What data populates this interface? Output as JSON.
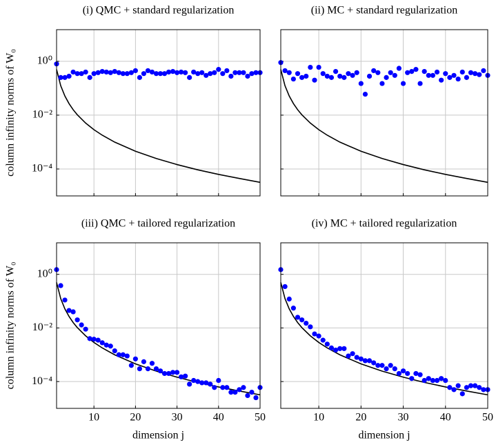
{
  "chart_data": [
    {
      "type": "scatter",
      "title": "(i) QMC + standard regularization",
      "ylabel": "column infinity norms of W₀",
      "log_y": true,
      "grid": true,
      "color": "#0000ff",
      "x": [
        1,
        2,
        3,
        4,
        5,
        6,
        7,
        8,
        9,
        10,
        11,
        12,
        13,
        14,
        15,
        16,
        17,
        18,
        19,
        20,
        21,
        22,
        23,
        24,
        25,
        26,
        27,
        28,
        29,
        30,
        31,
        32,
        33,
        34,
        35,
        36,
        37,
        38,
        39,
        40,
        41,
        42,
        43,
        44,
        45,
        46,
        47,
        48,
        49,
        50
      ],
      "values": [
        0.8,
        0.25,
        0.25,
        0.28,
        0.4,
        0.35,
        0.35,
        0.4,
        0.25,
        0.35,
        0.38,
        0.42,
        0.4,
        0.38,
        0.42,
        0.38,
        0.35,
        0.35,
        0.38,
        0.45,
        0.25,
        0.35,
        0.45,
        0.4,
        0.35,
        0.35,
        0.35,
        0.4,
        0.42,
        0.38,
        0.4,
        0.38,
        0.25,
        0.4,
        0.35,
        0.38,
        0.3,
        0.35,
        0.38,
        0.5,
        0.35,
        0.45,
        0.28,
        0.38,
        0.38,
        0.38,
        0.28,
        0.35,
        0.38,
        0.38
      ],
      "curve": {
        "color": "#000000",
        "x": [
          1,
          2,
          3,
          4,
          5,
          6,
          8,
          10,
          12,
          15,
          20,
          25,
          30,
          35,
          40,
          45,
          50
        ],
        "values": [
          0.5,
          0.124,
          0.0515,
          0.0269,
          0.0159,
          0.0103,
          0.00508,
          0.00288,
          0.0018,
          0.000995,
          0.000456,
          0.000245,
          0.000146,
          9.3e-05,
          6.3e-05,
          4.45e-05,
          3.2e-05
        ]
      },
      "xlim": [
        1,
        50
      ],
      "xticks": [
        10,
        20,
        30,
        40,
        50
      ],
      "ylim": [
        1e-05,
        15
      ],
      "yticks": [
        {
          "value": 1,
          "label": "10⁰"
        },
        {
          "value": 0.01,
          "label": "10⁻²"
        },
        {
          "value": 0.0001,
          "label": "10⁻⁴"
        }
      ]
    },
    {
      "type": "scatter",
      "title": "(ii) MC + standard regularization",
      "log_y": true,
      "grid": true,
      "color": "#0000ff",
      "x": [
        1,
        2,
        3,
        4,
        5,
        6,
        7,
        8,
        9,
        10,
        11,
        12,
        13,
        14,
        15,
        16,
        17,
        18,
        19,
        20,
        21,
        22,
        23,
        24,
        25,
        26,
        27,
        28,
        29,
        30,
        31,
        32,
        33,
        34,
        35,
        36,
        37,
        38,
        39,
        40,
        41,
        42,
        43,
        44,
        45,
        46,
        47,
        48,
        49,
        50
      ],
      "values": [
        0.9,
        0.45,
        0.38,
        0.22,
        0.35,
        0.25,
        0.28,
        0.6,
        0.2,
        0.6,
        0.35,
        0.28,
        0.25,
        0.42,
        0.28,
        0.25,
        0.35,
        0.3,
        0.38,
        0.15,
        0.06,
        0.28,
        0.45,
        0.38,
        0.15,
        0.25,
        0.38,
        0.3,
        0.55,
        0.15,
        0.38,
        0.42,
        0.5,
        0.15,
        0.42,
        0.3,
        0.3,
        0.4,
        0.2,
        0.35,
        0.25,
        0.3,
        0.22,
        0.4,
        0.25,
        0.38,
        0.35,
        0.32,
        0.45,
        0.3
      ],
      "curve": {
        "color": "#000000",
        "x": [
          1,
          2,
          3,
          4,
          5,
          6,
          8,
          10,
          12,
          15,
          20,
          25,
          30,
          35,
          40,
          45,
          50
        ],
        "values": [
          0.5,
          0.124,
          0.0515,
          0.0269,
          0.0159,
          0.0103,
          0.00508,
          0.00288,
          0.0018,
          0.000995,
          0.000456,
          0.000245,
          0.000146,
          9.3e-05,
          6.3e-05,
          4.45e-05,
          3.2e-05
        ]
      },
      "xlim": [
        1,
        50
      ],
      "xticks": [
        10,
        20,
        30,
        40,
        50
      ],
      "ylim": [
        1e-05,
        15
      ],
      "yticks": [
        1,
        0.01,
        0.0001
      ]
    },
    {
      "type": "scatter",
      "title": "(iii) QMC + tailored regularization",
      "xlabel": "dimension j",
      "ylabel": "column infinity norms of W₀",
      "log_y": true,
      "grid": true,
      "color": "#0000ff",
      "x": [
        1,
        2,
        3,
        4,
        5,
        6,
        7,
        8,
        9,
        10,
        11,
        12,
        13,
        14,
        15,
        16,
        17,
        18,
        19,
        20,
        21,
        22,
        23,
        24,
        25,
        26,
        27,
        28,
        29,
        30,
        31,
        32,
        33,
        34,
        35,
        36,
        37,
        38,
        39,
        40,
        41,
        42,
        43,
        44,
        45,
        46,
        47,
        48,
        49,
        50
      ],
      "values": [
        1.5,
        0.38,
        0.11,
        0.045,
        0.04,
        0.02,
        0.013,
        0.009,
        0.004,
        0.0038,
        0.0035,
        0.0028,
        0.0023,
        0.0021,
        0.0014,
        0.001,
        0.001,
        0.0009,
        0.0004,
        0.0007,
        0.0003,
        0.00055,
        0.0003,
        0.00048,
        0.0003,
        0.00025,
        0.0002,
        0.0002,
        0.00022,
        0.00022,
        0.00015,
        0.00016,
        8e-05,
        0.00011,
        0.0001,
        9e-05,
        9e-05,
        8e-05,
        6e-05,
        0.00011,
        6e-05,
        6e-05,
        4e-05,
        4e-05,
        5e-05,
        6e-05,
        3e-05,
        4e-05,
        2.5e-05,
        6e-05
      ],
      "curve": {
        "color": "#000000",
        "x": [
          1,
          2,
          3,
          4,
          5,
          6,
          8,
          10,
          12,
          15,
          20,
          25,
          30,
          35,
          40,
          45,
          50
        ],
        "values": [
          0.5,
          0.124,
          0.0515,
          0.0269,
          0.0159,
          0.0103,
          0.00508,
          0.00288,
          0.0018,
          0.000995,
          0.000456,
          0.000245,
          0.000146,
          9.3e-05,
          6.3e-05,
          4.45e-05,
          3.2e-05
        ]
      },
      "xlim": [
        1,
        50
      ],
      "xticks": [
        10,
        20,
        30,
        40,
        50
      ],
      "ylim": [
        1e-05,
        15
      ],
      "yticks": [
        {
          "value": 1,
          "label": "10⁰"
        },
        {
          "value": 0.01,
          "label": "10⁻²"
        },
        {
          "value": 0.0001,
          "label": "10⁻⁴"
        }
      ]
    },
    {
      "type": "scatter",
      "title": "(iv) MC + tailored regularization",
      "xlabel": "dimension j",
      "log_y": true,
      "grid": true,
      "color": "#0000ff",
      "x": [
        1,
        2,
        3,
        4,
        5,
        6,
        7,
        8,
        9,
        10,
        11,
        12,
        13,
        14,
        15,
        16,
        17,
        18,
        19,
        20,
        21,
        22,
        23,
        24,
        25,
        26,
        27,
        28,
        29,
        30,
        31,
        32,
        33,
        34,
        35,
        36,
        37,
        38,
        39,
        40,
        41,
        42,
        43,
        44,
        45,
        46,
        47,
        48,
        49,
        50
      ],
      "values": [
        1.5,
        0.35,
        0.12,
        0.055,
        0.025,
        0.02,
        0.015,
        0.011,
        0.006,
        0.005,
        0.0035,
        0.0025,
        0.0018,
        0.0015,
        0.0017,
        0.0017,
        0.0009,
        0.0011,
        0.0008,
        0.0007,
        0.0006,
        0.0006,
        0.0005,
        0.0004,
        0.0004,
        0.0003,
        0.0004,
        0.0003,
        0.0002,
        0.00025,
        0.0002,
        0.00013,
        0.0002,
        0.00018,
        0.00011,
        0.00013,
        0.00011,
        0.00011,
        0.00013,
        0.00011,
        6e-05,
        5e-05,
        7e-05,
        3.5e-05,
        6e-05,
        7e-05,
        7e-05,
        6e-05,
        5e-05,
        5e-05
      ],
      "curve": {
        "color": "#000000",
        "x": [
          1,
          2,
          3,
          4,
          5,
          6,
          8,
          10,
          12,
          15,
          20,
          25,
          30,
          35,
          40,
          45,
          50
        ],
        "values": [
          0.5,
          0.124,
          0.0515,
          0.0269,
          0.0159,
          0.0103,
          0.00508,
          0.00288,
          0.0018,
          0.000995,
          0.000456,
          0.000245,
          0.000146,
          9.3e-05,
          6.3e-05,
          4.45e-05,
          3.2e-05
        ]
      },
      "xlim": [
        1,
        50
      ],
      "xticks": [
        10,
        20,
        30,
        40,
        50
      ],
      "ylim": [
        1e-05,
        15
      ],
      "yticks": [
        1,
        0.01,
        0.0001
      ]
    }
  ]
}
